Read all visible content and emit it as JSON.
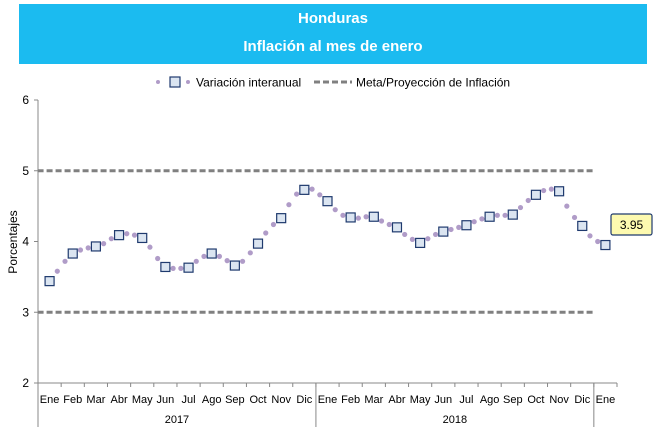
{
  "header": {
    "title": "Honduras",
    "subtitle": "Inflación al mes de enero"
  },
  "chart_data": {
    "type": "line",
    "title": "Honduras",
    "subtitle": "Inflación al mes de enero",
    "ylabel": "Porcentajes",
    "xlabel": "",
    "ylim": [
      2,
      6
    ],
    "yticks": [
      "2",
      "3",
      "4",
      "5",
      "6"
    ],
    "grid": false,
    "legend_position": "top",
    "months": [
      "Ene",
      "Feb",
      "Mar",
      "Abr",
      "May",
      "Jun",
      "Jul",
      "Ago",
      "Sep",
      "Oct",
      "Nov",
      "Dic",
      "Ene",
      "Feb",
      "Mar",
      "Abr",
      "May",
      "Jun",
      "Jul",
      "Ago",
      "Sep",
      "Oct",
      "Nov",
      "Dic",
      "Ene"
    ],
    "years": [
      "2017",
      "2018"
    ],
    "series": [
      {
        "name": "Variación interanual",
        "color": "#b09cc8",
        "marker_color": "#1f3a6e",
        "values": [
          3.44,
          3.83,
          3.93,
          4.09,
          4.05,
          3.64,
          3.63,
          3.83,
          3.66,
          3.97,
          4.33,
          4.73,
          4.57,
          4.34,
          4.35,
          4.2,
          3.98,
          4.14,
          4.23,
          4.35,
          4.38,
          4.66,
          4.71,
          4.22,
          3.95
        ],
        "dotted_values": [
          3.44,
          3.58,
          3.72,
          3.83,
          3.88,
          3.91,
          3.93,
          3.97,
          4.04,
          4.09,
          4.11,
          4.09,
          4.05,
          3.92,
          3.76,
          3.64,
          3.62,
          3.62,
          3.63,
          3.72,
          3.79,
          3.83,
          3.79,
          3.73,
          3.66,
          3.72,
          3.84,
          3.97,
          4.12,
          4.24,
          4.33,
          4.52,
          4.67,
          4.73,
          4.74,
          4.66,
          4.57,
          4.45,
          4.37,
          4.34,
          4.33,
          4.35,
          4.35,
          4.29,
          4.24,
          4.2,
          4.1,
          4.03,
          3.98,
          4.04,
          4.1,
          4.14,
          4.17,
          4.2,
          4.23,
          4.28,
          4.32,
          4.35,
          4.37,
          4.37,
          4.38,
          4.48,
          4.58,
          4.66,
          4.72,
          4.74,
          4.71,
          4.5,
          4.34,
          4.22,
          4.08,
          4.0,
          3.95
        ]
      },
      {
        "name": "Meta/Proyección de Inflación",
        "color": "#808080",
        "upper": 5,
        "lower": 3
      }
    ],
    "annotation": "3.95"
  }
}
